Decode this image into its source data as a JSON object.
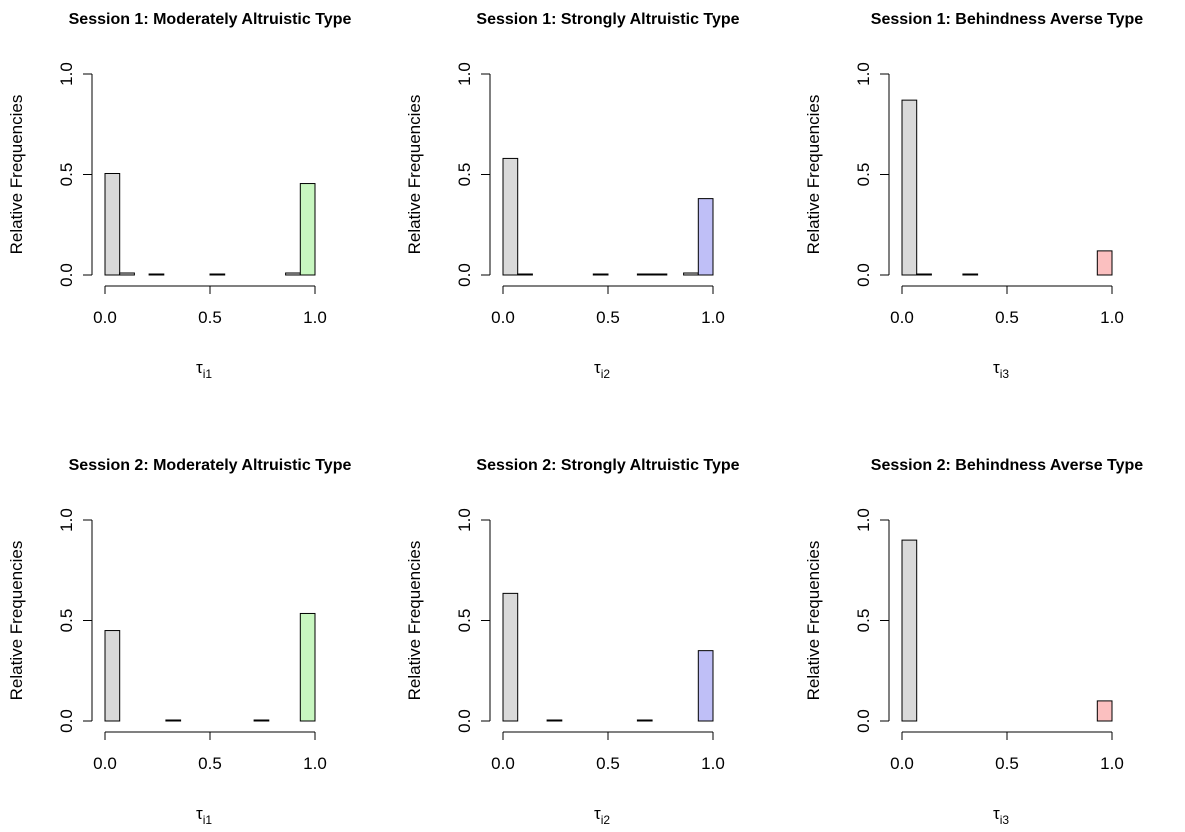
{
  "chart_data": [
    {
      "type": "bar",
      "title": "Session 1: Moderately Altruistic Type",
      "ylabel": "Relative Frequencies",
      "xlabel_symbol": "τ",
      "xlabel_sub": "i1",
      "xlim": [
        0,
        1
      ],
      "ylim": [
        0,
        1
      ],
      "xticks": [
        "0.0",
        "0.5",
        "1.0"
      ],
      "yticks": [
        "0.0",
        "0.5",
        "1.0"
      ],
      "accent_color": "#c8f7c0",
      "bins": [
        [
          0,
          0.07,
          0.505
        ],
        [
          0.07,
          0.14,
          0.01
        ],
        [
          0.21,
          0.28,
          0.005
        ],
        [
          0.5,
          0.57,
          0.005
        ],
        [
          0.86,
          0.93,
          0.01
        ],
        [
          0.93,
          1.0,
          0.455
        ]
      ]
    },
    {
      "type": "bar",
      "title": "Session 1: Strongly Altruistic Type",
      "ylabel": "Relative Frequencies",
      "xlabel_symbol": "τ",
      "xlabel_sub": "i2",
      "xlim": [
        0,
        1
      ],
      "ylim": [
        0,
        1
      ],
      "xticks": [
        "0.0",
        "0.5",
        "1.0"
      ],
      "yticks": [
        "0.0",
        "0.5",
        "1.0"
      ],
      "accent_color": "#bfbff7",
      "bins": [
        [
          0,
          0.07,
          0.58
        ],
        [
          0.07,
          0.14,
          0.005
        ],
        [
          0.43,
          0.5,
          0.005
        ],
        [
          0.64,
          0.71,
          0.005
        ],
        [
          0.71,
          0.78,
          0.005
        ],
        [
          0.86,
          0.93,
          0.01
        ],
        [
          0.93,
          1.0,
          0.38
        ]
      ]
    },
    {
      "type": "bar",
      "title": "Session 1: Behindness Averse Type",
      "ylabel": "Relative Frequencies",
      "xlabel_symbol": "τ",
      "xlabel_sub": "i3",
      "xlim": [
        0,
        1
      ],
      "ylim": [
        0,
        1
      ],
      "xticks": [
        "0.0",
        "0.5",
        "1.0"
      ],
      "yticks": [
        "0.0",
        "0.5",
        "1.0"
      ],
      "accent_color": "#fbc0c0",
      "bins": [
        [
          0,
          0.07,
          0.87
        ],
        [
          0.07,
          0.14,
          0.005
        ],
        [
          0.29,
          0.36,
          0.005
        ],
        [
          0.93,
          1.0,
          0.12
        ]
      ]
    },
    {
      "type": "bar",
      "title": "Session 2: Moderately Altruistic Type",
      "ylabel": "Relative Frequencies",
      "xlabel_symbol": "τ",
      "xlabel_sub": "i1",
      "xlim": [
        0,
        1
      ],
      "ylim": [
        0,
        1
      ],
      "xticks": [
        "0.0",
        "0.5",
        "1.0"
      ],
      "yticks": [
        "0.0",
        "0.5",
        "1.0"
      ],
      "accent_color": "#c8f7c0",
      "bins": [
        [
          0,
          0.07,
          0.45
        ],
        [
          0.29,
          0.36,
          0.005
        ],
        [
          0.71,
          0.78,
          0.005
        ],
        [
          0.93,
          1.0,
          0.535
        ]
      ]
    },
    {
      "type": "bar",
      "title": "Session 2: Strongly Altruistic Type",
      "ylabel": "Relative Frequencies",
      "xlabel_symbol": "τ",
      "xlabel_sub": "i2",
      "xlim": [
        0,
        1
      ],
      "ylim": [
        0,
        1
      ],
      "xticks": [
        "0.0",
        "0.5",
        "1.0"
      ],
      "yticks": [
        "0.0",
        "0.5",
        "1.0"
      ],
      "accent_color": "#bfbff7",
      "bins": [
        [
          0,
          0.07,
          0.635
        ],
        [
          0.21,
          0.28,
          0.005
        ],
        [
          0.64,
          0.71,
          0.005
        ],
        [
          0.93,
          1.0,
          0.35
        ]
      ]
    },
    {
      "type": "bar",
      "title": "Session 2: Behindness Averse Type",
      "ylabel": "Relative Frequencies",
      "xlabel_symbol": "τ",
      "xlabel_sub": "i3",
      "xlim": [
        0,
        1
      ],
      "ylim": [
        0,
        1
      ],
      "xticks": [
        "0.0",
        "0.5",
        "1.0"
      ],
      "yticks": [
        "0.0",
        "0.5",
        "1.0"
      ],
      "accent_color": "#fbc0c0",
      "bins": [
        [
          0,
          0.07,
          0.9
        ],
        [
          0.93,
          1.0,
          0.1
        ]
      ]
    }
  ],
  "colors": {
    "bar_default": "#d9d9d9",
    "axis": "#000000",
    "background": "#ffffff"
  }
}
